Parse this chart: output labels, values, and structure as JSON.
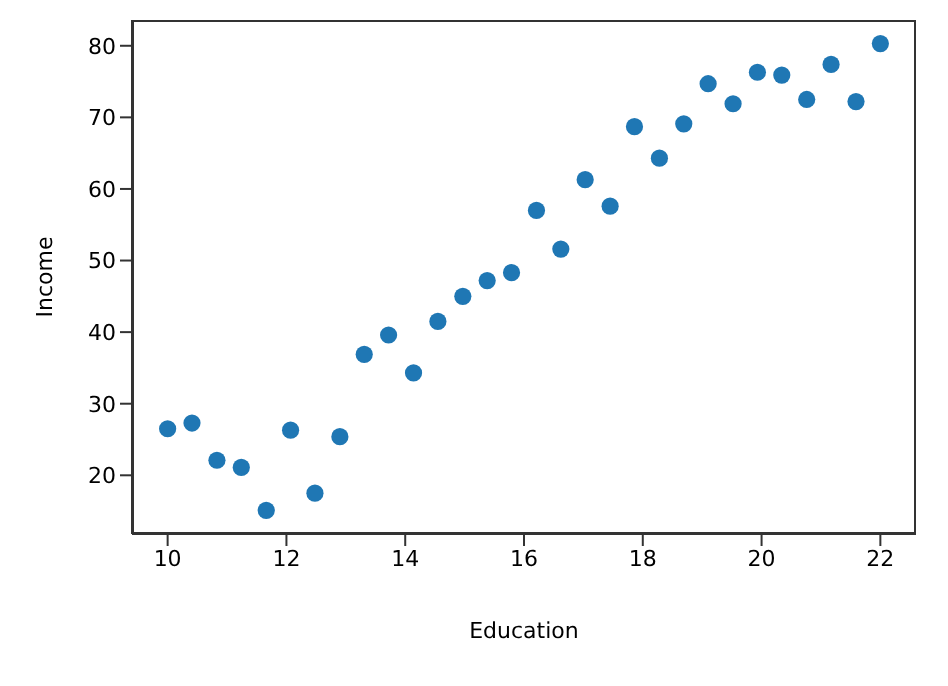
{
  "chart_data": {
    "type": "scatter",
    "xlabel": "Education",
    "ylabel": "Income",
    "x": [
      10,
      10.41,
      10.83,
      11.24,
      11.66,
      12.07,
      12.48,
      12.9,
      13.31,
      13.72,
      14.14,
      14.55,
      14.97,
      15.38,
      15.79,
      16.21,
      16.62,
      17.03,
      17.45,
      17.86,
      18.28,
      18.69,
      19.1,
      19.52,
      19.93,
      20.34,
      20.76,
      21.17,
      21.59,
      22
    ],
    "values": [
      26.5,
      27.3,
      22.1,
      21.1,
      15.1,
      26.3,
      17.5,
      25.4,
      36.9,
      39.6,
      34.3,
      41.5,
      45.0,
      47.2,
      48.3,
      57.0,
      51.6,
      61.3,
      57.6,
      68.7,
      64.3,
      69.1,
      74.7,
      71.9,
      76.3,
      75.9,
      72.5,
      77.4,
      72.2,
      80.3
    ],
    "color": "#1f77b4",
    "marker": "circle",
    "xlim": [
      9.4,
      22.6
    ],
    "ylim": [
      11.8,
      83.6
    ],
    "xticks": [
      10,
      12,
      14,
      16,
      18,
      20,
      22
    ],
    "yticks": [
      20,
      30,
      40,
      50,
      60,
      70,
      80
    ],
    "grid": false
  }
}
